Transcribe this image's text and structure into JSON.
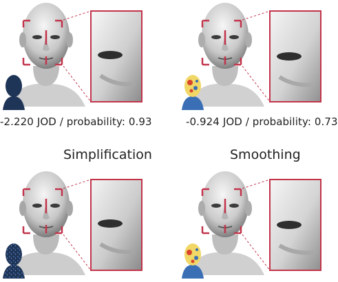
{
  "figure": {
    "panels": [
      {
        "id": "top-left",
        "caption": "-2.220 JOD / probability: 0.93",
        "thumbnail": "dark-navy-head"
      },
      {
        "id": "top-right",
        "caption": "-0.924 JOD / probability: 0.73",
        "thumbnail": "colormap-head"
      },
      {
        "id": "bottom-left",
        "caption": "",
        "thumbnail": "blue-speckled-head"
      },
      {
        "id": "bottom-right",
        "caption": "",
        "thumbnail": "colormap-head"
      }
    ],
    "section_labels": {
      "left": "Simplification",
      "right": "Smoothing"
    },
    "colors": {
      "highlight_box": "#c2334a",
      "head_light": "#e8e8e8",
      "head_shadow": "#8c8c8c",
      "navy": "#1f3557",
      "heat_red": "#d9442b",
      "heat_blue": "#3a6fb6",
      "heat_yellow": "#f0d766"
    }
  }
}
